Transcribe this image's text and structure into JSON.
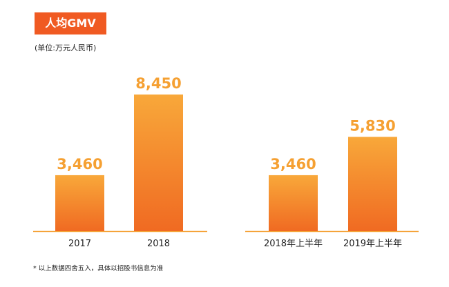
{
  "badge": {
    "title": "人均GMV",
    "color": "#f05a22"
  },
  "unit_label": "(单位:万元人民币)",
  "chart_data": [
    {
      "type": "bar",
      "categories": [
        "2017",
        "2018"
      ],
      "values": [
        3460,
        8450
      ],
      "value_labels": [
        "3,460",
        "8,450"
      ]
    },
    {
      "type": "bar",
      "categories": [
        "2018年上半年",
        "2019年上半年"
      ],
      "values": [
        3460,
        5830
      ],
      "value_labels": [
        "3,460",
        "5,830"
      ]
    }
  ],
  "colors": {
    "bar_top": "#f8a83a",
    "bar_bottom": "#f06a22",
    "value_text": "#f5a032",
    "axis": "#f5a032"
  },
  "footnote": "* 以上数据四舍五入，具体以招股书信息为准"
}
